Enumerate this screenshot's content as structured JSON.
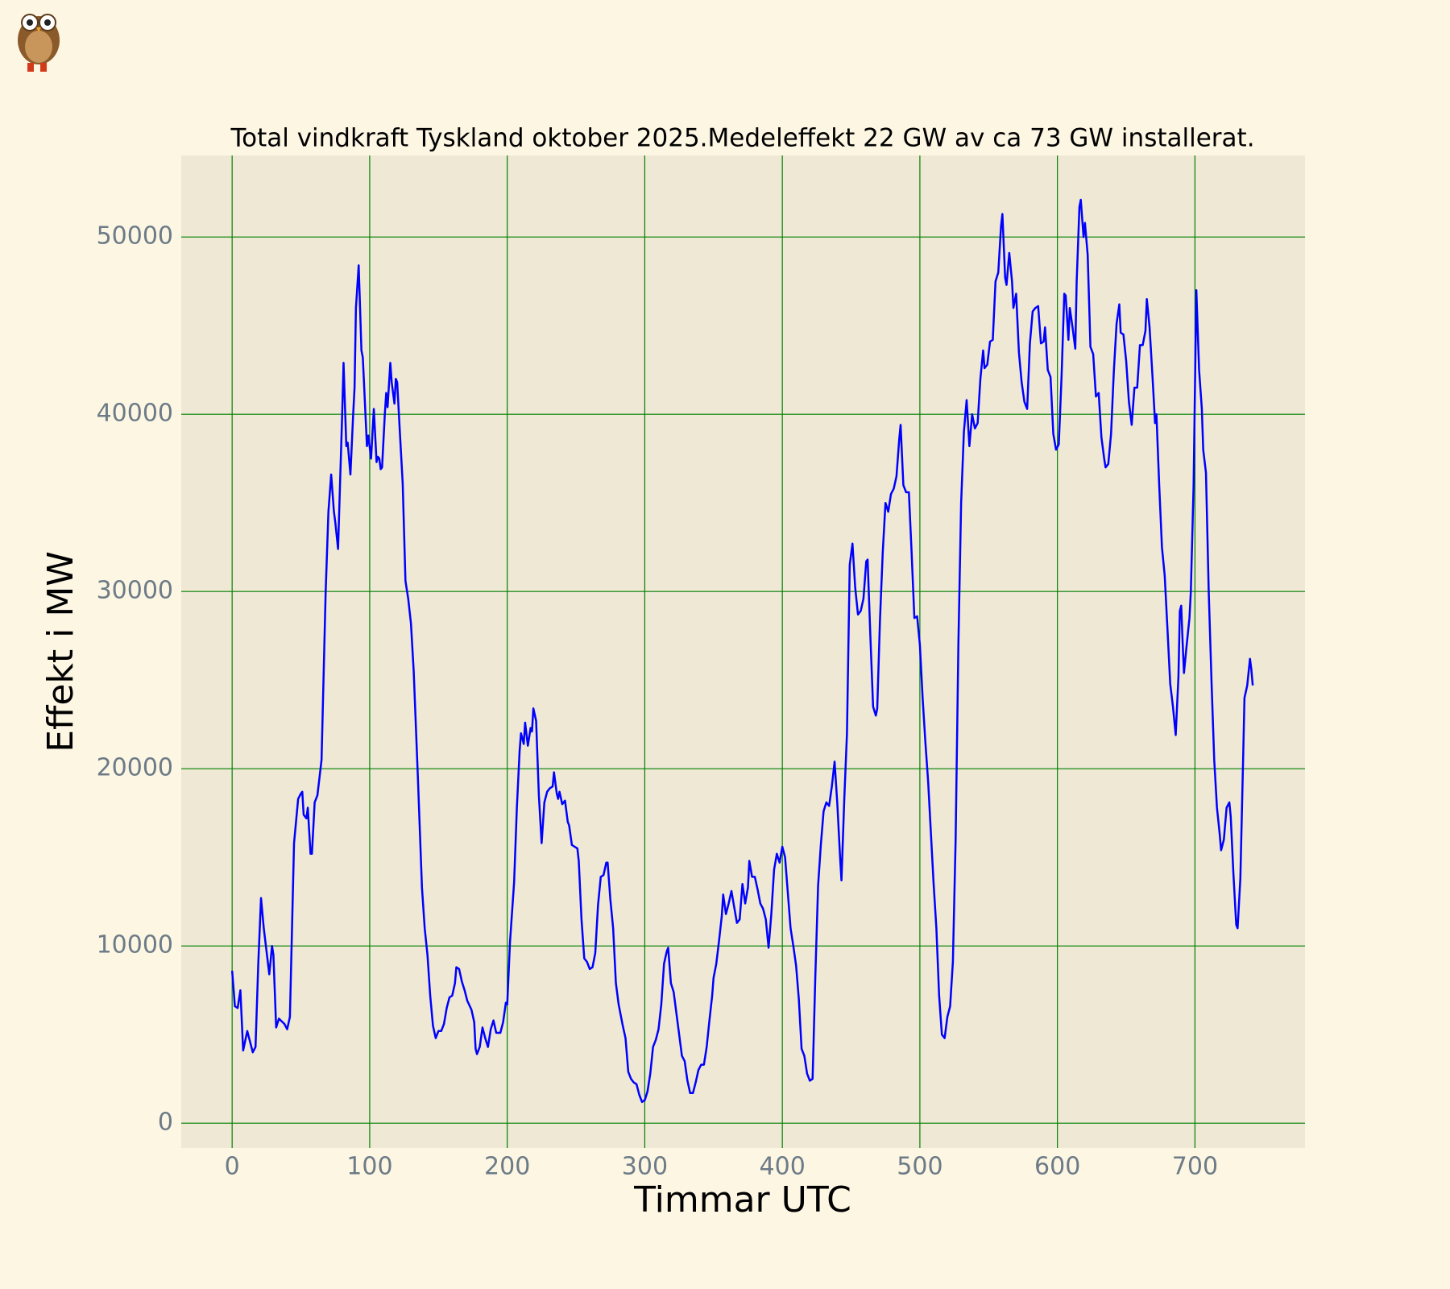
{
  "chart_data": {
    "type": "line",
    "title": "Total vindkraft Tyskland oktober 2025.Medeleffekt 22 GW av  ca 73 GW installerat.",
    "xlabel": "Timmar UTC",
    "ylabel": "Effekt i MW",
    "color": "#0000ff",
    "grid": true,
    "xlim": [
      -37,
      780
    ],
    "ylim": [
      -1400,
      54600
    ],
    "xticks": [
      0,
      100,
      200,
      300,
      400,
      500,
      600,
      700
    ],
    "yticks": [
      0,
      10000,
      20000,
      30000,
      40000,
      50000
    ],
    "x": [
      0,
      2,
      4,
      6,
      8,
      11,
      15,
      17,
      19,
      21,
      23,
      27,
      29,
      30,
      32,
      34,
      38,
      40,
      42,
      45,
      48,
      50,
      51,
      52,
      54,
      55,
      57,
      58,
      60,
      62,
      65,
      68,
      70,
      72,
      74,
      75,
      77,
      80,
      81,
      83,
      84,
      86,
      88,
      89,
      90,
      92,
      94,
      95,
      98,
      99,
      101,
      103,
      105,
      106,
      107,
      108,
      109,
      111,
      112,
      113,
      115,
      116,
      118,
      119,
      120,
      122,
      124,
      126,
      128,
      130,
      132,
      135,
      138,
      140,
      142,
      144,
      146,
      148,
      150,
      152,
      154,
      156,
      158,
      160,
      162,
      163,
      165,
      167,
      169,
      171,
      174,
      176,
      177,
      178,
      180,
      182,
      184,
      186,
      188,
      190,
      192,
      195,
      197,
      199,
      200,
      202,
      205,
      207,
      209,
      210,
      212,
      213,
      215,
      217,
      218,
      219,
      221,
      223,
      225,
      227,
      229,
      231,
      233,
      234,
      236,
      237,
      238,
      240,
      242,
      244,
      245,
      247,
      249,
      251,
      252,
      254,
      256,
      258,
      260,
      262,
      264,
      266,
      268,
      270,
      272,
      273,
      275,
      277,
      279,
      281,
      284,
      286,
      288,
      290,
      292,
      294,
      296,
      298,
      300,
      302,
      304,
      306,
      308,
      310,
      312,
      314,
      316,
      317,
      319,
      321,
      323,
      325,
      327,
      329,
      331,
      333,
      335,
      337,
      339,
      341,
      343,
      345,
      347,
      349,
      350,
      352,
      354,
      356,
      357,
      359,
      361,
      363,
      365,
      367,
      369,
      371,
      373,
      375,
      376,
      378,
      380,
      382,
      384,
      386,
      388,
      390,
      392,
      394,
      396,
      398,
      400,
      402,
      404,
      406,
      408,
      410,
      412,
      414,
      416,
      418,
      420,
      422,
      424,
      426,
      428,
      430,
      432,
      434,
      436,
      438,
      440,
      442,
      443,
      445,
      447,
      449,
      451,
      453,
      455,
      457,
      459,
      461,
      462,
      464,
      466,
      468,
      469,
      471,
      473,
      475,
      477,
      479,
      481,
      483,
      485,
      486,
      488,
      490,
      492,
      494,
      496,
      498,
      500,
      502,
      504,
      506,
      508,
      510,
      512,
      514,
      516,
      518,
      520,
      522,
      524,
      526,
      528,
      530,
      532,
      534,
      536,
      538,
      540,
      542,
      544,
      546,
      547,
      549,
      551,
      553,
      555,
      557,
      559,
      560,
      562,
      563,
      565,
      567,
      568,
      570,
      572,
      574,
      576,
      578,
      580,
      582,
      584,
      586,
      588,
      590,
      591,
      593,
      595,
      597,
      599,
      601,
      603,
      605,
      606,
      608,
      609,
      611,
      613,
      614,
      616,
      617,
      619,
      620,
      622,
      624,
      626,
      628,
      630,
      632,
      634,
      635,
      637,
      639,
      641,
      643,
      645,
      646,
      648,
      650,
      652,
      654,
      656,
      658,
      660,
      662,
      664,
      665,
      667,
      669,
      671,
      672,
      674,
      676,
      678,
      680,
      682,
      684,
      686,
      688,
      689,
      690,
      691,
      692,
      694,
      696,
      697,
      699,
      701,
      703,
      705,
      706,
      708,
      710,
      712,
      714,
      716,
      718,
      719,
      721,
      723,
      725,
      726,
      728,
      730,
      731,
      733,
      735,
      736,
      738,
      740,
      741,
      742
    ],
    "values": [
      8600,
      6600,
      6500,
      7500,
      4100,
      5200,
      4000,
      4300,
      9000,
      12700,
      11000,
      8400,
      10000,
      9500,
      5400,
      5900,
      5600,
      5300,
      6000,
      15800,
      18300,
      18600,
      18700,
      17400,
      17200,
      17800,
      15200,
      15200,
      18100,
      18500,
      20500,
      30000,
      34500,
      36600,
      34500,
      33900,
      32400,
      40000,
      42900,
      38200,
      38400,
      36600,
      40000,
      41500,
      46000,
      48400,
      43600,
      43200,
      38200,
      38800,
      37500,
      40300,
      37300,
      37600,
      37500,
      36900,
      37000,
      40000,
      41200,
      40400,
      42900,
      41800,
      40600,
      42000,
      41800,
      38900,
      36100,
      30600,
      29600,
      28200,
      25500,
      19600,
      13300,
      11000,
      9500,
      7200,
      5500,
      4800,
      5200,
      5200,
      5600,
      6500,
      7100,
      7200,
      7900,
      8800,
      8700,
      8000,
      7500,
      6900,
      6400,
      5700,
      4200,
      3900,
      4300,
      5400,
      4800,
      4300,
      5300,
      5800,
      5100,
      5100,
      5700,
      6800,
      6700,
      10200,
      13600,
      17800,
      21000,
      22000,
      21400,
      22600,
      21300,
      22300,
      22100,
      23400,
      22700,
      18500,
      15800,
      18100,
      18700,
      18900,
      19000,
      19800,
      18600,
      18300,
      18700,
      18000,
      18200,
      17000,
      16800,
      15700,
      15600,
      15500,
      14800,
      11500,
      9300,
      9100,
      8700,
      8800,
      9600,
      12300,
      13900,
      14000,
      14700,
      14700,
      12600,
      11000,
      7900,
      6700,
      5500,
      4800,
      2900,
      2500,
      2300,
      2200,
      1600,
      1200,
      1300,
      1800,
      2800,
      4300,
      4700,
      5300,
      6700,
      9000,
      9700,
      9900,
      7900,
      7400,
      6200,
      5000,
      3800,
      3500,
      2400,
      1700,
      1700,
      2300,
      3000,
      3300,
      3300,
      4300,
      5800,
      7200,
      8200,
      9000,
      10300,
      11700,
      12900,
      11800,
      12400,
      13100,
      12200,
      11300,
      11500,
      13500,
      12400,
      13300,
      14800,
      13900,
      13900,
      13200,
      12400,
      12100,
      11500,
      9900,
      11800,
      14300,
      15200,
      14700,
      15600,
      15000,
      13000,
      11000,
      10000,
      8900,
      7000,
      4200,
      3800,
      2800,
      2400,
      2500,
      8300,
      13400,
      15700,
      17600,
      18100,
      17900,
      19000,
      20400,
      18000,
      15000,
      13700,
      18200,
      22000,
      31500,
      32700,
      30200,
      28700,
      28900,
      29600,
      31700,
      31800,
      27500,
      23500,
      23000,
      23400,
      28400,
      32200,
      35000,
      34500,
      35500,
      35800,
      36500,
      38600,
      39400,
      36000,
      35600,
      35600,
      32200,
      28500,
      28600,
      27000,
      24000,
      21500,
      19300,
      16400,
      13500,
      11000,
      7200,
      5000,
      4800,
      6000,
      6600,
      9100,
      16000,
      27000,
      35000,
      39000,
      40800,
      38200,
      40000,
      39200,
      39500,
      42000,
      43600,
      42600,
      42800,
      44100,
      44200,
      47500,
      48000,
      50600,
      51300,
      47700,
      47300,
      49100,
      47500,
      46000,
      46800,
      43500,
      41800,
      40700,
      40300,
      44000,
      45800,
      46000,
      46100,
      44000,
      44100,
      44900,
      42500,
      42100,
      38900,
      38000,
      38300,
      42100,
      46800,
      46700,
      44200,
      46000,
      44900,
      43700,
      47500,
      51700,
      52100,
      50000,
      50800,
      49000,
      43800,
      43400,
      41000,
      41200,
      38700,
      37500,
      37000,
      37200,
      38900,
      42400,
      45100,
      46200,
      44600,
      44500,
      43000,
      40700,
      39400,
      41500,
      41500,
      43900,
      43900,
      44700,
      46500,
      44900,
      42300,
      39500,
      40000,
      36000,
      32500,
      30900,
      27900,
      24800,
      23500,
      21900,
      25200,
      28900,
      29200,
      27200,
      25400,
      27000,
      28500,
      30000,
      36000,
      47000,
      42500,
      40300,
      38000,
      36700,
      30000,
      25000,
      20500,
      17800,
      16300,
      15400,
      16000,
      17800,
      18100,
      17300,
      14000,
      11200,
      11000,
      13800,
      20500,
      24000,
      24700,
      26200,
      25600,
      24700
    ]
  }
}
